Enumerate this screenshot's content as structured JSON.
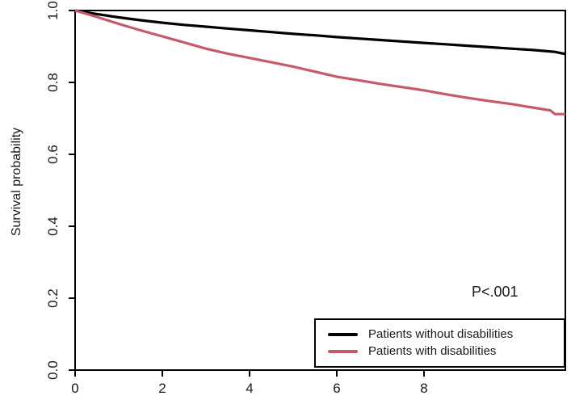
{
  "chart_data": {
    "type": "line",
    "title": "",
    "xlabel": "",
    "ylabel": "Survival probability",
    "annotation": "P<.001",
    "x_ticks": [
      0,
      2,
      4,
      6,
      8
    ],
    "y_ticks": [
      "0.0",
      "0.2",
      "0.4",
      "0.6",
      "0.8",
      "1.0"
    ],
    "xlim": [
      0,
      11.24
    ],
    "ylim": [
      0,
      1.0
    ],
    "grid": false,
    "legend_position": "bottom-right",
    "series": [
      {
        "name": "Patients without disabilities",
        "color": "#000000",
        "x": [
          0,
          0.25,
          0.5,
          1,
          1.5,
          2,
          2.5,
          3,
          3.5,
          4,
          4.5,
          5,
          5.5,
          6,
          6.5,
          7,
          7.5,
          8,
          8.5,
          9,
          9.5,
          10,
          10.5,
          11,
          11.24
        ],
        "y": [
          1.0,
          0.995,
          0.99,
          0.981,
          0.973,
          0.966,
          0.96,
          0.955,
          0.95,
          0.945,
          0.94,
          0.935,
          0.931,
          0.926,
          0.922,
          0.918,
          0.914,
          0.91,
          0.906,
          0.902,
          0.898,
          0.894,
          0.89,
          0.885,
          0.879
        ]
      },
      {
        "name": "Patients with disabilities",
        "color": "#C65A6A",
        "x": [
          0,
          0.25,
          0.5,
          1,
          1.5,
          2,
          2.5,
          3,
          3.5,
          4,
          4.5,
          5,
          5.5,
          6,
          6.5,
          7,
          7.5,
          8,
          8.5,
          9,
          9.5,
          10,
          10.3,
          10.6,
          10.9,
          11.0,
          11.24
        ],
        "y": [
          1.0,
          0.991,
          0.982,
          0.963,
          0.945,
          0.928,
          0.911,
          0.894,
          0.88,
          0.868,
          0.856,
          0.844,
          0.83,
          0.816,
          0.806,
          0.796,
          0.787,
          0.778,
          0.767,
          0.757,
          0.748,
          0.74,
          0.734,
          0.728,
          0.722,
          0.712,
          0.712
        ]
      }
    ]
  }
}
